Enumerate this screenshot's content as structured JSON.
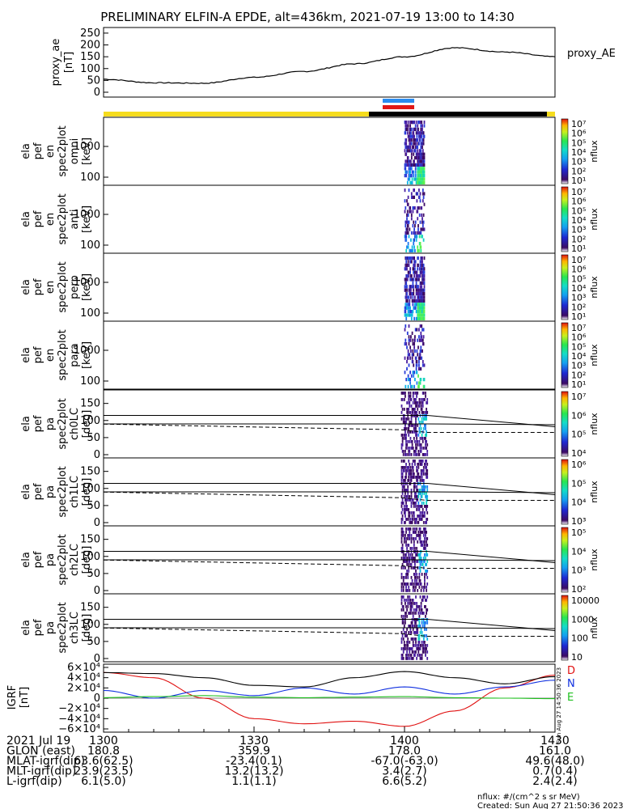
{
  "title": "PRELIMINARY ELFIN-A EPDE, alt=436km, 2021-07-19 13:00 to 14:30",
  "colors": {
    "bar_yellow": "#f5dc1e",
    "bar_black": "#000000",
    "bar_blue": "#2a8cf0",
    "bar_red": "#e01818",
    "grf_d": "#e01010",
    "grf_n": "#1030e0",
    "grf_e": "#20c020"
  },
  "panels": [
    {
      "label": [
        "ela",
        "pef",
        "en",
        "spec2plot",
        "omni",
        "[keV]"
      ],
      "yticks": [
        "1000",
        "100"
      ],
      "cb_ticks": [
        "10⁷",
        "10⁶",
        "10⁵",
        "10⁴",
        "10³",
        "10²",
        "10¹"
      ],
      "cb_label": "nflux"
    },
    {
      "label": [
        "ela",
        "pef",
        "en",
        "spec2plot",
        "anti",
        "[keV]"
      ],
      "yticks": [
        "1000",
        "100"
      ],
      "cb_ticks": [
        "10⁷",
        "10⁶",
        "10⁵",
        "10⁴",
        "10³",
        "10²",
        "10¹"
      ],
      "cb_label": "nflux"
    },
    {
      "label": [
        "ela",
        "pef",
        "en",
        "spec2plot",
        "perp",
        "[keV]"
      ],
      "yticks": [
        "1000",
        "100"
      ],
      "cb_ticks": [
        "10⁷",
        "10⁶",
        "10⁵",
        "10⁴",
        "10³",
        "10²",
        "10¹"
      ],
      "cb_label": "nflux"
    },
    {
      "label": [
        "ela",
        "pef",
        "en",
        "spec2plot",
        "para",
        "[keV]"
      ],
      "yticks": [
        "1000",
        "100"
      ],
      "cb_ticks": [
        "10⁷",
        "10⁶",
        "10⁵",
        "10⁴",
        "10³",
        "10²",
        "10¹"
      ],
      "cb_label": "nflux"
    },
    {
      "label": [
        "ela",
        "pef",
        "pa",
        "spec2plot",
        "ch0LC",
        "[deg]"
      ],
      "yticks": [
        "150",
        "100",
        "50",
        "0"
      ],
      "cb_ticks": [
        "10⁷",
        "10⁶",
        "10⁵",
        "10⁴"
      ],
      "cb_label": "nflux"
    },
    {
      "label": [
        "ela",
        "pef",
        "pa",
        "spec2plot",
        "ch1LC",
        "[deg]"
      ],
      "yticks": [
        "150",
        "100",
        "50",
        "0"
      ],
      "cb_ticks": [
        "10⁶",
        "10⁵",
        "10⁴",
        "10³"
      ],
      "cb_label": "nflux"
    },
    {
      "label": [
        "ela",
        "pef",
        "pa",
        "spec2plot",
        "ch2LC",
        "[deg]"
      ],
      "yticks": [
        "150",
        "100",
        "50",
        "0"
      ],
      "cb_ticks": [
        "10⁵",
        "10⁴",
        "10³",
        "10²"
      ],
      "cb_label": "nflux"
    },
    {
      "label": [
        "ela",
        "pef",
        "pa",
        "spec2plot",
        "ch3LC",
        "[deg]"
      ],
      "yticks": [
        "150",
        "100",
        "50",
        "0"
      ],
      "cb_ticks": [
        "10000",
        "1000",
        "100",
        "10"
      ],
      "cb_label": "nflux"
    }
  ],
  "proxy_ae": {
    "ylabel": [
      "proxy_ae",
      "[nT]"
    ],
    "yticks": [
      "250",
      "200",
      "150",
      "100",
      "50",
      "0"
    ],
    "legend": "proxy_AE"
  },
  "igrf": {
    "ylabel": [
      "IGRF",
      "[nT]"
    ],
    "yticks": [
      "6×10⁴",
      "4×10⁴",
      "2×10⁴",
      "0",
      "−2×10⁴",
      "−4×10⁴",
      "−6×10⁴"
    ],
    "legend": [
      "D",
      "N",
      "E"
    ],
    "side_text": "Sun Aug 27 14:50:36 2023"
  },
  "footer": {
    "rows": [
      {
        "label": "2021 Jul 19",
        "values": [
          "1300",
          "1330",
          "1400",
          "1430"
        ]
      },
      {
        "label": "GLON (east)",
        "values": [
          "180.8",
          "359.9",
          "178.0",
          "161.0"
        ]
      },
      {
        "label": "MLAT-igrf(dip)",
        "values": [
          "63.6(62.5)",
          "-23.4(0.1)",
          "-67.0(-63.0)",
          "49.6(48.0)"
        ]
      },
      {
        "label": "MLT-igrf(dip)",
        "values": [
          "23.9(23.5)",
          "13.2(13.2)",
          "3.4(2.7)",
          "0.7(0.4)"
        ]
      },
      {
        "label": "L-igrf(dip)",
        "values": [
          "6.1(5.0)",
          "1.1(1.1)",
          "6.6(5.2)",
          "2.4(2.4)"
        ]
      }
    ],
    "units": "nflux: #/(cm^2 s sr MeV)",
    "created": "Created: Sun Aug 27 21:50:36 2023"
  },
  "chart_data": {
    "type": "line",
    "title": "PRELIMINARY ELFIN-A EPDE, alt=436km, 2021-07-19 13:00 to 14:30",
    "x_range": [
      "13:00",
      "14:30"
    ],
    "proxy_ae": {
      "name": "proxy_AE",
      "x_min": [
        0,
        10,
        20,
        30,
        40,
        50,
        60,
        70,
        80,
        90
      ],
      "y": [
        55,
        40,
        38,
        63,
        88,
        120,
        150,
        188,
        170,
        150
      ],
      "ylim": [
        0,
        260
      ]
    },
    "igrf": {
      "ylim": [
        -60000,
        60000
      ],
      "x_min": [
        0,
        10,
        20,
        30,
        40,
        50,
        60,
        70,
        80,
        90
      ],
      "series": [
        {
          "name": "D",
          "color": "#e01010",
          "y": [
            50000,
            40000,
            0,
            -40000,
            -50000,
            -45000,
            -55000,
            -25000,
            20000,
            45000
          ]
        },
        {
          "name": "N",
          "color": "#1030e0",
          "y": [
            15000,
            0,
            15000,
            5000,
            20000,
            8000,
            22000,
            8000,
            22000,
            35000
          ]
        },
        {
          "name": "E",
          "color": "#20c020",
          "y": [
            1000,
            3000,
            5000,
            2000,
            1000,
            2000,
            3000,
            1000,
            0,
            -1000
          ]
        },
        {
          "name": "total",
          "color": "#000000",
          "y": [
            50000,
            48000,
            40000,
            25000,
            22000,
            40000,
            52000,
            40000,
            28000,
            42000
          ]
        }
      ]
    },
    "spectra": {
      "energy_ylim_keV": [
        60,
        5000
      ],
      "pa_ylim_deg": [
        0,
        180
      ],
      "active_interval_min": [
        58,
        62
      ]
    }
  }
}
